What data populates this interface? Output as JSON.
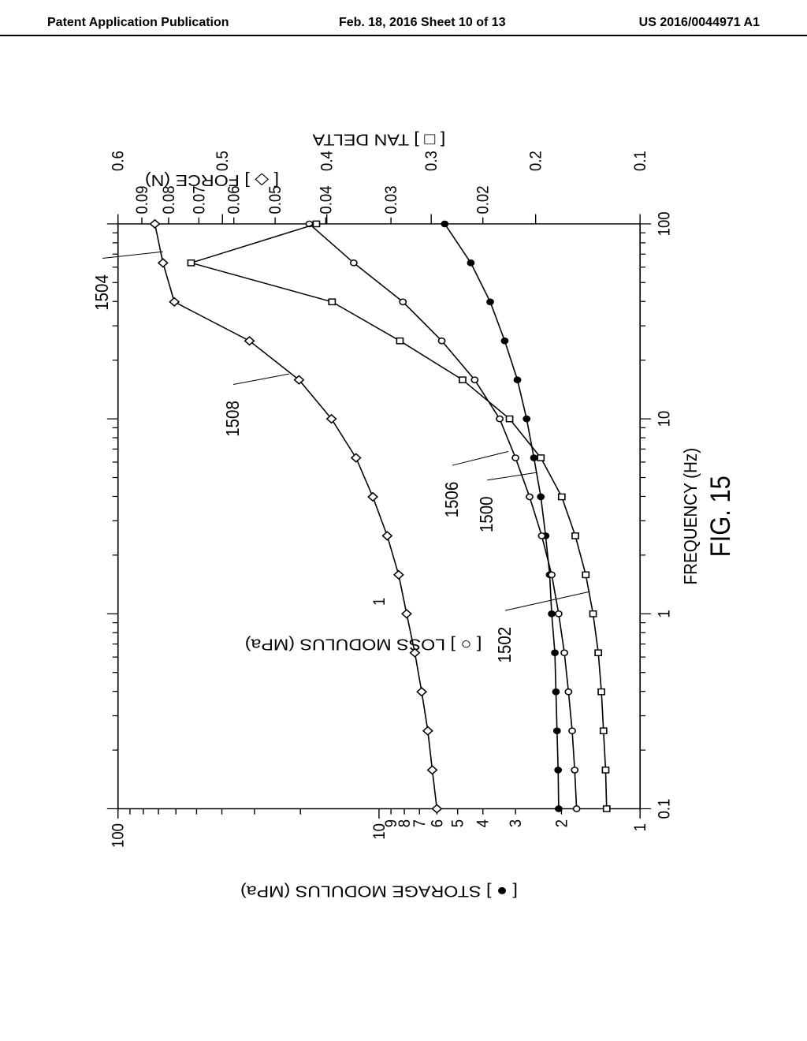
{
  "header": {
    "left": "Patent Application Publication",
    "center": "Feb. 18, 2016   Sheet 10 of 13",
    "right": "US 2016/0044971 A1"
  },
  "figure": {
    "label": "FIG. 15",
    "type": "line",
    "orientation_deg": 90,
    "background_color": "#ffffff",
    "stroke_color": "#000000",
    "xlabel": "FREQUENCY (Hz)",
    "x_scale": "log",
    "xlim": [
      0.1,
      100
    ],
    "x_decade_ticks": [
      0.1,
      1,
      10,
      100
    ],
    "x_tick_labels": [
      "0.1",
      "1",
      "10",
      "100"
    ],
    "axes": [
      {
        "id": "storage",
        "label": "STORAGE MODULUS (MPa)",
        "position": "left-outer",
        "scale": "log",
        "lim": [
          1,
          100
        ],
        "major_ticks": [
          1,
          10,
          100
        ],
        "inner_tick_labels": [
          "1",
          "2",
          "3",
          "4",
          "5",
          "6",
          "7",
          "8",
          "9",
          "10",
          "100"
        ],
        "inner_tick_positions": [
          1,
          2,
          3,
          4,
          5,
          6,
          7,
          8,
          9,
          10,
          100
        ],
        "legend_marker": "filled-circle"
      },
      {
        "id": "loss",
        "label": "LOSS MODULUS (MPa)",
        "position": "left-inner",
        "scale": "log",
        "lim": [
          0.1,
          10
        ],
        "major_ticks": [
          0.1,
          1,
          10
        ],
        "legend_marker": "open-circle"
      },
      {
        "id": "force",
        "label": "FORCE (N)",
        "position": "right-inner",
        "scale": "log",
        "lim": [
          0.01,
          0.1
        ],
        "tick_labels": [
          "0.02",
          "0.03",
          "0.04",
          "0.05",
          "0.06",
          "0.07",
          "0.08",
          "0.09"
        ],
        "tick_positions": [
          0.02,
          0.03,
          0.04,
          0.05,
          0.06,
          0.07,
          0.08,
          0.09
        ],
        "legend_marker": "open-diamond"
      },
      {
        "id": "tandelta",
        "label": "TAN DELTA",
        "position": "right-outer",
        "scale": "linear",
        "lim": [
          0.1,
          0.6
        ],
        "ticks": [
          0.1,
          0.2,
          0.3,
          0.4,
          0.5,
          0.6
        ],
        "tick_labels": [
          "0.1",
          "0.2",
          "0.3",
          "0.4",
          "0.5",
          "0.6"
        ],
        "legend_marker": "open-square"
      }
    ],
    "ref_labels": {
      "1500": {
        "text": "1500",
        "target_series": "storage"
      },
      "1502": {
        "text": "1502",
        "target_series": "tandelta"
      },
      "1504": {
        "text": "1504",
        "target_series": "force"
      },
      "1506": {
        "text": "1506",
        "target_series": "loss"
      },
      "1508": {
        "text": "1508",
        "target_series": "force"
      }
    },
    "x_points": [
      0.1,
      0.158,
      0.251,
      0.398,
      0.631,
      1.0,
      1.585,
      2.512,
      3.981,
      6.31,
      10.0,
      15.85,
      25.12,
      39.81,
      63.1,
      100.0
    ],
    "series": [
      {
        "id": "storage_modulus",
        "axis": "storage",
        "marker": "filled-circle",
        "marker_size": 7,
        "y": [
          2.05,
          2.06,
          2.08,
          2.1,
          2.12,
          2.18,
          2.22,
          2.3,
          2.4,
          2.55,
          2.72,
          2.95,
          3.3,
          3.75,
          4.45,
          5.6
        ]
      },
      {
        "id": "loss_modulus",
        "axis": "loss",
        "marker": "open-circle",
        "marker_size": 7,
        "y": [
          0.175,
          0.178,
          0.182,
          0.188,
          0.195,
          0.205,
          0.218,
          0.238,
          0.265,
          0.3,
          0.345,
          0.43,
          0.575,
          0.81,
          1.25,
          1.85
        ]
      },
      {
        "id": "tan_delta",
        "axis": "tandelta",
        "marker": "open-square",
        "marker_size": 7,
        "y": [
          0.132,
          0.133,
          0.135,
          0.137,
          0.14,
          0.145,
          0.152,
          0.162,
          0.175,
          0.195,
          0.225,
          0.27,
          0.33,
          0.395,
          0.53,
          0.41
        ]
      },
      {
        "id": "force",
        "axis": "force",
        "marker": "open-diamond",
        "marker_size": 8,
        "y": [
          0.0245,
          0.025,
          0.0255,
          0.0262,
          0.027,
          0.028,
          0.029,
          0.0305,
          0.0325,
          0.035,
          0.039,
          0.045,
          0.056,
          0.078,
          0.082,
          0.085
        ]
      }
    ],
    "label_fontsize": 18,
    "tick_fontsize": 16,
    "line_width": 1.4
  }
}
